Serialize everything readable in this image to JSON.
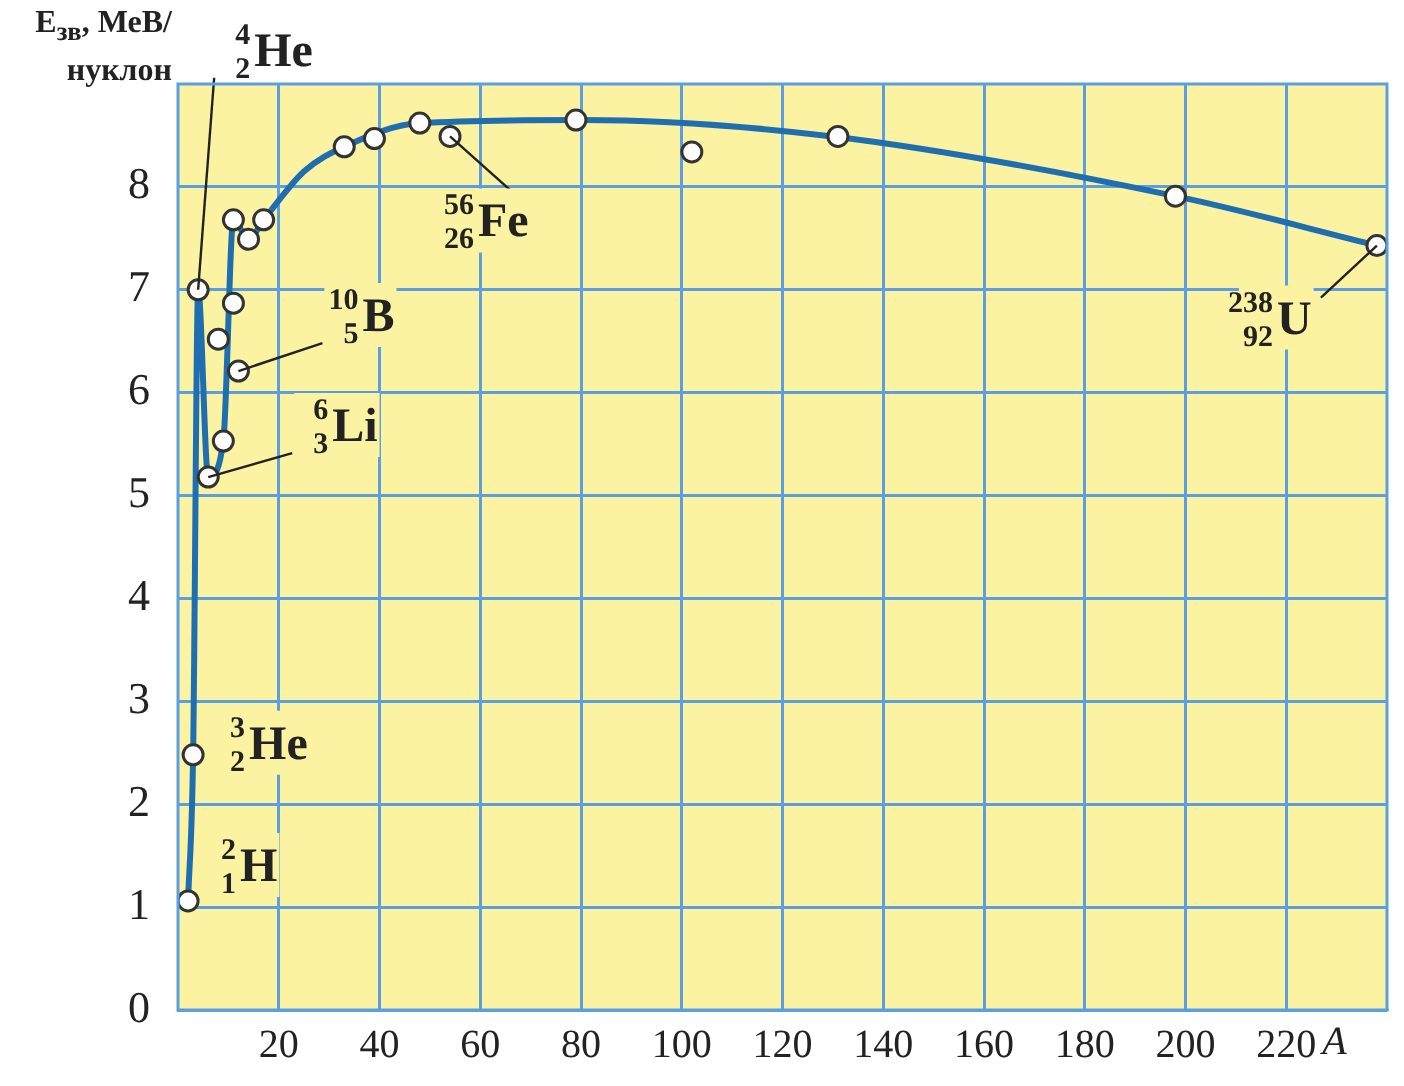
{
  "chart_data": {
    "type": "line",
    "ylabel": "E$_{зв}$, МеВ/нуклон",
    "xlabel": "A",
    "xlim": [
      0,
      240
    ],
    "xticks": [
      20,
      40,
      60,
      80,
      100,
      120,
      140,
      160,
      180,
      200,
      220
    ],
    "ylim": [
      0,
      9
    ],
    "yticks": [
      0,
      1,
      2,
      3,
      4,
      5,
      6,
      7,
      8
    ],
    "grid": true,
    "legend": false,
    "series": [
      {
        "type": "line",
        "color": "#1f6fb0",
        "x": [
          2,
          3,
          4,
          6,
          9,
          11,
          14,
          17,
          25,
          33,
          48,
          80,
          130,
          198,
          238
        ],
        "values": [
          1.06,
          2.48,
          7.0,
          5.18,
          5.53,
          7.68,
          7.49,
          7.68,
          8.15,
          8.39,
          8.62,
          8.65,
          8.49,
          7.91,
          7.43
        ]
      },
      {
        "type": "scatter",
        "color": "#333333",
        "marker": "circle",
        "x": [
          2,
          3,
          4,
          6,
          8,
          9,
          11,
          12,
          11,
          14,
          17,
          33,
          39,
          48,
          54,
          79,
          102,
          131,
          198,
          238
        ],
        "values": [
          1.06,
          2.48,
          7.0,
          5.18,
          6.52,
          5.53,
          6.87,
          6.21,
          7.68,
          7.49,
          7.68,
          8.39,
          8.47,
          8.62,
          8.49,
          8.65,
          8.34,
          8.49,
          7.91,
          7.43
        ]
      }
    ],
    "annotations": [
      {
        "text": "$^{2}$$_{1}$H",
        "x": 2,
        "y": 1.06
      },
      {
        "text": "$^{3}$$_{2}$He",
        "x": 3,
        "y": 2.48
      },
      {
        "text": "$^{4}$$_{2}$He",
        "x": 4,
        "y": 7.0
      },
      {
        "text": "$^{6}$$_{3}$Li",
        "x": 6,
        "y": 5.18
      },
      {
        "text": "$^{10}$$_{5}$B",
        "x": 12,
        "y": 6.21
      },
      {
        "text": "$^{56}$$_{26}$Fe",
        "x": 54,
        "y": 8.49
      },
      {
        "text": "$^{238}$$_{92}$U",
        "x": 238,
        "y": 7.43
      }
    ]
  }
}
